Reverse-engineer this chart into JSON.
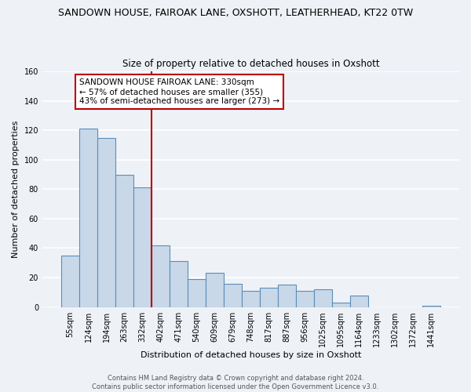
{
  "title": "SANDOWN HOUSE, FAIROAK LANE, OXSHOTT, LEATHERHEAD, KT22 0TW",
  "subtitle": "Size of property relative to detached houses in Oxshott",
  "xlabel": "Distribution of detached houses by size in Oxshott",
  "ylabel": "Number of detached properties",
  "bar_labels": [
    "55sqm",
    "124sqm",
    "194sqm",
    "263sqm",
    "332sqm",
    "402sqm",
    "471sqm",
    "540sqm",
    "609sqm",
    "679sqm",
    "748sqm",
    "817sqm",
    "887sqm",
    "956sqm",
    "1025sqm",
    "1095sqm",
    "1164sqm",
    "1233sqm",
    "1302sqm",
    "1372sqm",
    "1441sqm"
  ],
  "bar_values": [
    35,
    121,
    115,
    90,
    81,
    42,
    31,
    19,
    23,
    16,
    11,
    13,
    15,
    11,
    12,
    3,
    8,
    0,
    0,
    0,
    1
  ],
  "bar_color": "#c8d8e8",
  "bar_edge_color": "#5b8db8",
  "bg_color": "#eef2f7",
  "grid_color": "#d8dee8",
  "ylim": [
    0,
    160
  ],
  "yticks": [
    0,
    20,
    40,
    60,
    80,
    100,
    120,
    140,
    160
  ],
  "vline_x": 4.5,
  "vline_color": "#bb0000",
  "annotation_title": "SANDOWN HOUSE FAIROAK LANE: 330sqm",
  "annotation_line1": "← 57% of detached houses are smaller (355)",
  "annotation_line2": "43% of semi-detached houses are larger (273) →",
  "annotation_box_color": "#ffffff",
  "annotation_box_edge": "#bb0000",
  "footer1": "Contains HM Land Registry data © Crown copyright and database right 2024.",
  "footer2": "Contains public sector information licensed under the Open Government Licence v3.0."
}
